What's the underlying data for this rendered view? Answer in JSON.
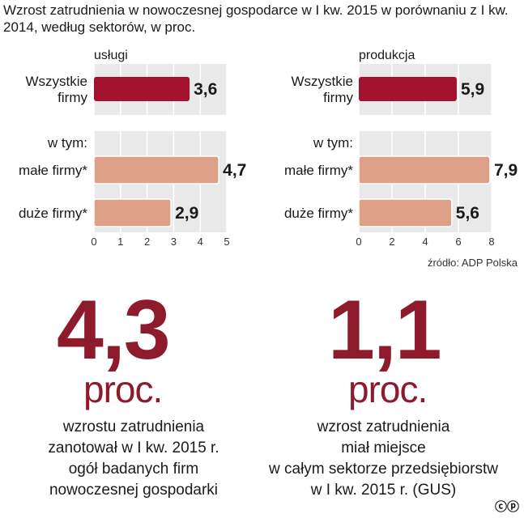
{
  "title": "Wzrost zatrudnienia w nowoczesnej gospodarce w I kw. 2015 w porównaniu z I kw. 2014, według sektorów, w proc.",
  "source": "źródło: ADP Polska",
  "colors": {
    "dark_bar": "#a3122e",
    "light_bar": "#dfa08a",
    "band": "#e9e9e9",
    "accent_text": "#8e1b2c"
  },
  "chart_data": [
    {
      "type": "bar",
      "orientation": "horizontal",
      "title": "usługi",
      "categories": [
        "Wszystkie firmy",
        "małe firmy*",
        "duże firmy*"
      ],
      "group_label": "w tym:",
      "values": [
        3.6,
        4.7,
        2.9
      ],
      "value_labels": [
        "3,6",
        "4,7",
        "2,9"
      ],
      "xlim": [
        0,
        5
      ],
      "xticks": [
        "0",
        "1",
        "2",
        "3",
        "4",
        "5"
      ]
    },
    {
      "type": "bar",
      "orientation": "horizontal",
      "title": "produkcja",
      "categories": [
        "Wszystkie firmy",
        "małe firmy*",
        "duże firmy*"
      ],
      "group_label": "w tym:",
      "values": [
        5.9,
        7.9,
        5.6
      ],
      "value_labels": [
        "5,9",
        "7,9",
        "5,6"
      ],
      "xlim": [
        0,
        8
      ],
      "xticks": [
        "0",
        "2",
        "4",
        "6",
        "8"
      ]
    }
  ],
  "stats": [
    {
      "number": "4,3",
      "unit": "proc.",
      "desc_lines": [
        "wzrostu zatrudnienia",
        "zanotował w  I kw. 2015 r.",
        "ogół badanych firm",
        "nowoczesnej gospodarki"
      ]
    },
    {
      "number": "1,1",
      "unit": "proc.",
      "desc_lines": [
        "wzrost  zatrudnienia",
        "miał miejsce",
        "w całym sektorze przedsiębiorstw",
        "w I kw. 2015 r. (GUS)"
      ]
    }
  ],
  "logo": "ⓒⓟ"
}
